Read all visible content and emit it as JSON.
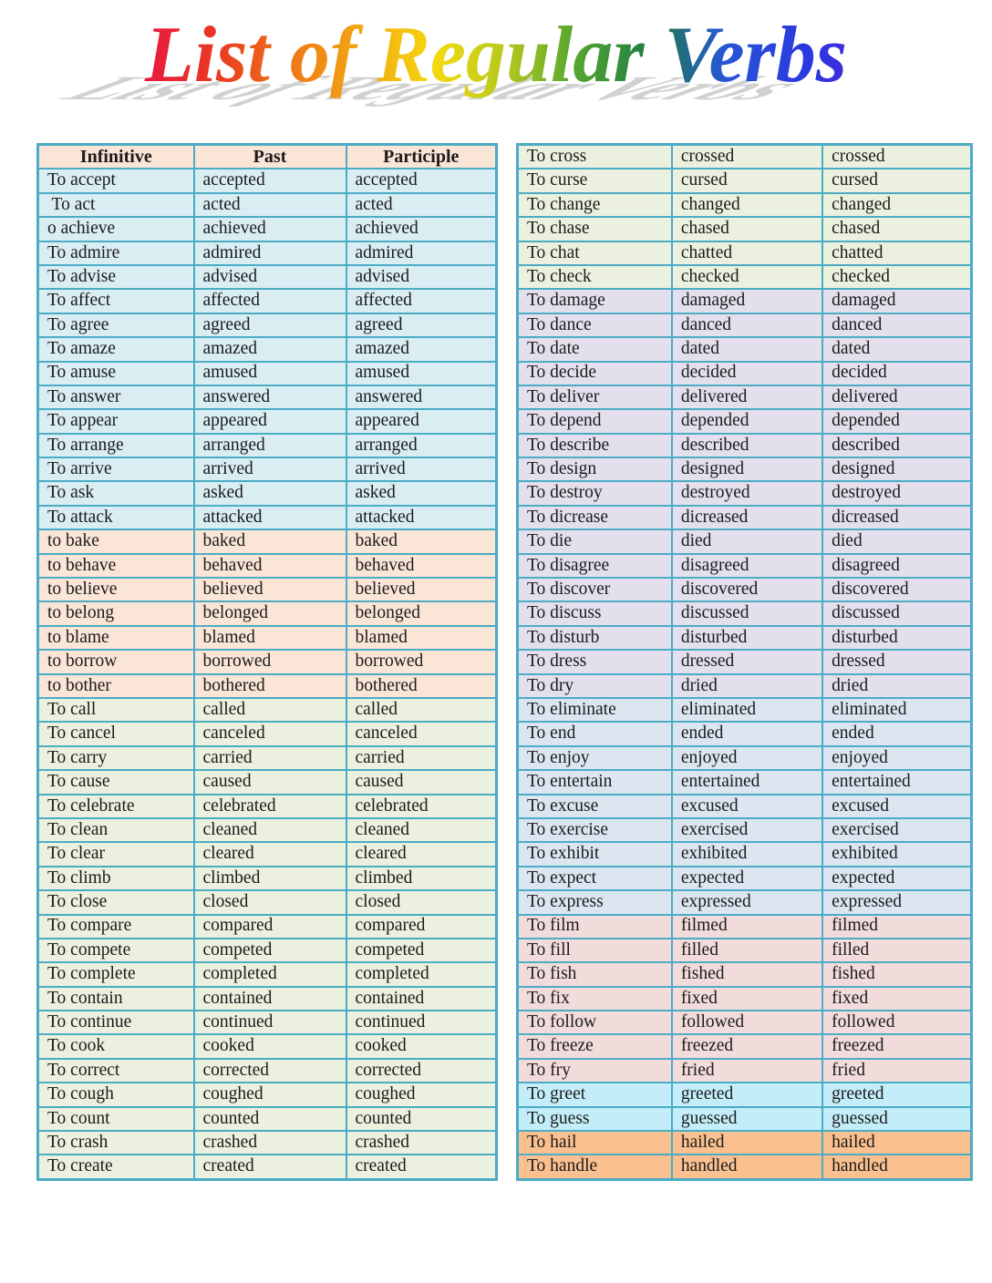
{
  "title": {
    "text": "List of Regular Verbs"
  },
  "colors": {
    "table_border": "#4BACC6",
    "header_bg": "#FBE5D6",
    "section_a_bg": "#D9EDF3",
    "section_b_bg": "#FBE5D6",
    "section_c_bg": "#EBF1DE",
    "section_d_bg": "#E4DFEC",
    "section_e_bg": "#DCE6F1",
    "section_f_bg": "#F2DCDB",
    "section_g_bg": "#C3EDF8",
    "section_h_bg": "#FAC090",
    "title_shadow": "#C9C9C9"
  },
  "left_table": {
    "header": {
      "labels": [
        "Infinitive",
        "Past",
        "Participle"
      ],
      "bg": "#FBE5D6"
    },
    "sections": [
      {
        "name": "a",
        "bg": "#D9EDF3",
        "rows": [
          [
            "To accept",
            "accepted",
            "accepted"
          ],
          [
            " To act",
            "acted",
            "acted"
          ],
          [
            "o achieve",
            "achieved",
            "achieved"
          ],
          [
            "To admire",
            "admired",
            "admired"
          ],
          [
            "To advise",
            "advised",
            "advised"
          ],
          [
            "To affect",
            "affected",
            "affected"
          ],
          [
            "To agree",
            "agreed",
            "agreed"
          ],
          [
            "To amaze",
            "amazed",
            "amazed"
          ],
          [
            "To amuse",
            "amused",
            "amused"
          ],
          [
            "To answer",
            "answered",
            "answered"
          ],
          [
            "To appear",
            "appeared",
            "appeared"
          ],
          [
            "To arrange",
            "arranged",
            "arranged"
          ],
          [
            "To arrive",
            "arrived",
            "arrived"
          ],
          [
            "To ask",
            "asked",
            "asked"
          ],
          [
            "To attack",
            "attacked",
            "attacked"
          ]
        ]
      },
      {
        "name": "b",
        "bg": "#FBE5D6",
        "rows": [
          [
            "to bake",
            "baked",
            "baked"
          ],
          [
            "to behave",
            "behaved",
            "behaved"
          ],
          [
            "to believe",
            "believed",
            "believed"
          ],
          [
            "to belong",
            "belonged",
            "belonged"
          ],
          [
            "to blame",
            "blamed",
            "blamed"
          ],
          [
            "to borrow",
            "borrowed",
            "borrowed"
          ],
          [
            "to bother",
            "bothered",
            "bothered"
          ]
        ]
      },
      {
        "name": "c",
        "bg": "#EBF1DE",
        "rows": [
          [
            "To call",
            "called",
            "called"
          ],
          [
            "To cancel",
            "canceled",
            "canceled"
          ],
          [
            "To carry",
            "carried",
            "carried"
          ],
          [
            "To cause",
            "caused",
            "caused"
          ],
          [
            "To celebrate",
            "celebrated",
            "celebrated"
          ],
          [
            "To clean",
            "cleaned",
            "cleaned"
          ],
          [
            "To clear",
            "cleared",
            "cleared"
          ],
          [
            "To climb",
            "climbed",
            "climbed"
          ],
          [
            "To close",
            "closed",
            "closed"
          ],
          [
            "To compare",
            "compared",
            "compared"
          ],
          [
            "To compete",
            "competed",
            "competed"
          ],
          [
            "To complete",
            "completed",
            "completed"
          ],
          [
            "To contain",
            "contained",
            "contained"
          ],
          [
            "To continue",
            "continued",
            "continued"
          ],
          [
            "To cook",
            "cooked",
            "cooked"
          ],
          [
            "To correct",
            "corrected",
            "corrected"
          ],
          [
            "To cough",
            "coughed",
            "coughed"
          ],
          [
            "To count",
            "counted",
            "counted"
          ],
          [
            "To crash",
            "crashed",
            "crashed"
          ],
          [
            "To create",
            "created",
            "created"
          ]
        ]
      }
    ]
  },
  "right_table": {
    "sections": [
      {
        "name": "c",
        "bg": "#EBF1DE",
        "rows": [
          [
            "To cross",
            "crossed",
            "crossed"
          ],
          [
            "To curse",
            "cursed",
            "cursed"
          ],
          [
            "To change",
            "changed",
            "changed"
          ],
          [
            "To chase",
            "chased",
            "chased"
          ],
          [
            "To chat",
            "chatted",
            "chatted"
          ],
          [
            "To check",
            "checked",
            "checked"
          ]
        ]
      },
      {
        "name": "d",
        "bg": "#E4DFEC",
        "rows": [
          [
            "To damage",
            "damaged",
            "damaged"
          ],
          [
            "To dance",
            "danced",
            "danced"
          ],
          [
            "To date",
            "dated",
            "dated"
          ],
          [
            "To decide",
            "decided",
            "decided"
          ],
          [
            "To deliver",
            "delivered",
            "delivered"
          ],
          [
            "To depend",
            "depended",
            "depended"
          ],
          [
            "To describe",
            "described",
            "described"
          ],
          [
            "To design",
            "designed",
            "designed"
          ],
          [
            "To destroy",
            "destroyed",
            "destroyed"
          ],
          [
            "To dicrease",
            "dicreased",
            "dicreased"
          ],
          [
            "To die",
            "died",
            "died"
          ],
          [
            "To disagree",
            "disagreed",
            "disagreed"
          ],
          [
            "To discover",
            "discovered",
            "discovered"
          ],
          [
            "To discuss",
            "discussed",
            "discussed"
          ],
          [
            "To disturb",
            "disturbed",
            "disturbed"
          ],
          [
            "To dress",
            "dressed",
            "dressed"
          ],
          [
            "To dry",
            "dried",
            "dried"
          ]
        ]
      },
      {
        "name": "e",
        "bg": "#DCE6F1",
        "rows": [
          [
            "To eliminate",
            "eliminated",
            "eliminated"
          ],
          [
            "To end",
            "ended",
            "ended"
          ],
          [
            "To enjoy",
            "enjoyed",
            "enjoyed"
          ],
          [
            "To entertain",
            "entertained",
            "entertained"
          ],
          [
            "To excuse",
            "excused",
            "excused"
          ],
          [
            "To exercise",
            "exercised",
            "exercised"
          ],
          [
            "To exhibit",
            "exhibited",
            "exhibited"
          ],
          [
            "To expect",
            "expected",
            "expected"
          ],
          [
            "To express",
            "expressed",
            "expressed"
          ]
        ]
      },
      {
        "name": "f",
        "bg": "#F2DCDB",
        "rows": [
          [
            "To film",
            "filmed",
            "filmed"
          ],
          [
            "To fill",
            "filled",
            "filled"
          ],
          [
            "To fish",
            "fished",
            "fished"
          ],
          [
            "To fix",
            "fixed",
            "fixed"
          ],
          [
            "To follow",
            "followed",
            "followed"
          ],
          [
            "To freeze",
            "freezed",
            "freezed"
          ],
          [
            "To fry",
            "fried",
            "fried"
          ]
        ]
      },
      {
        "name": "g",
        "bg": "#C3EDF8",
        "rows": [
          [
            "To greet",
            "greeted",
            "greeted"
          ],
          [
            "To guess",
            "guessed",
            "guessed"
          ]
        ]
      },
      {
        "name": "h",
        "bg": "#FAC090",
        "rows": [
          [
            "To hail",
            "hailed",
            "hailed"
          ],
          [
            "To handle",
            "handled",
            "handled"
          ]
        ]
      }
    ]
  }
}
